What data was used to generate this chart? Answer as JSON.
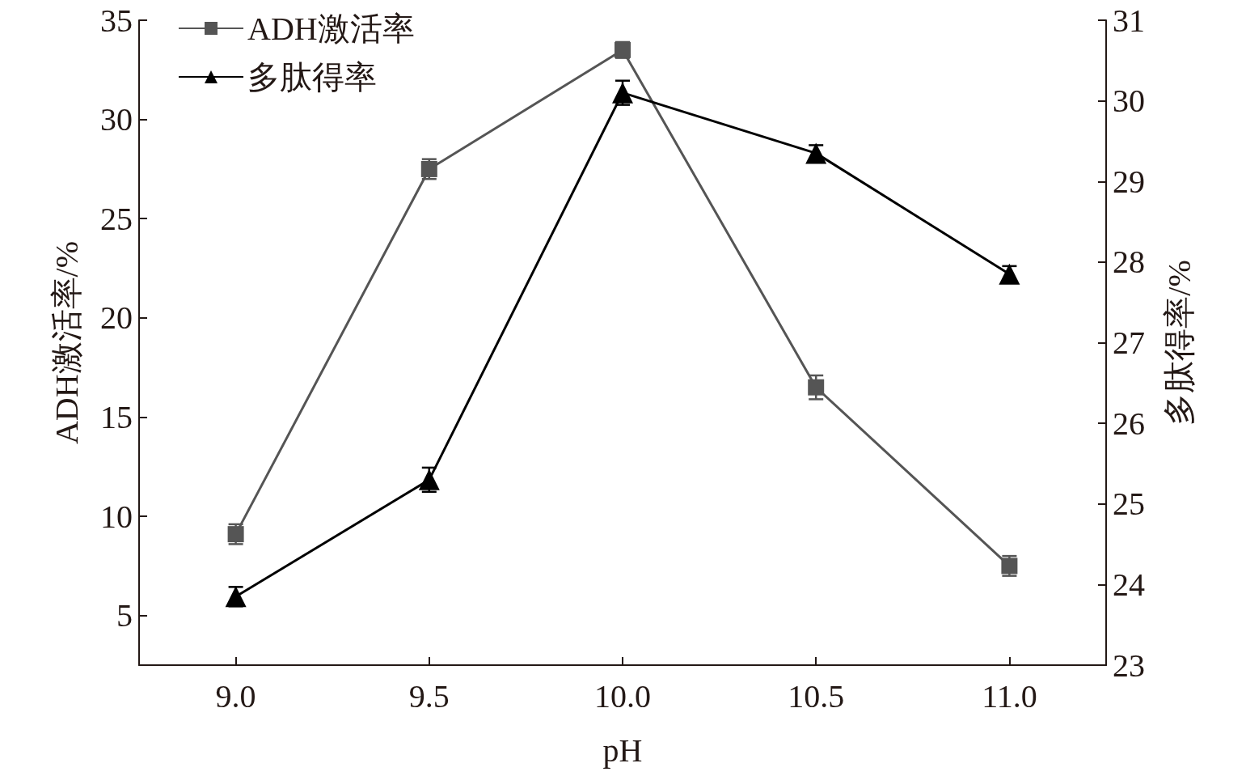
{
  "chart_data": {
    "type": "line",
    "xlabel": "pH",
    "ylabel": "ADH激活率/%",
    "y2label": "多肽得率/%",
    "x": [
      9.0,
      9.5,
      10.0,
      10.5,
      11.0
    ],
    "series": [
      {
        "name": "ADH激活率",
        "color": "#555555",
        "marker": "square",
        "values": [
          9.1,
          27.5,
          33.5,
          16.5,
          7.5
        ],
        "errors": [
          0.5,
          0.5,
          0.4,
          0.6,
          0.5
        ]
      },
      {
        "name": "多肽得率",
        "color": "#000000",
        "marker": "triangle",
        "axis": "y2",
        "values": [
          23.85,
          25.3,
          30.1,
          29.35,
          27.85
        ],
        "errors": [
          0.12,
          0.15,
          0.15,
          0.1,
          0.1
        ]
      }
    ],
    "xlim": [
      8.75,
      11.25
    ],
    "xticks": [
      {
        "value": 9.0,
        "label": "9.0"
      },
      {
        "value": 9.5,
        "label": "9.5"
      },
      {
        "value": 10.0,
        "label": "10.0"
      },
      {
        "value": 10.5,
        "label": "10.5"
      },
      {
        "value": 11.0,
        "label": "11.0"
      }
    ],
    "ylim": [
      2.5,
      35
    ],
    "yticks": [
      5,
      10,
      15,
      20,
      25,
      30,
      35
    ],
    "y2lim": [
      23,
      31
    ],
    "y2ticks": [
      23,
      24,
      25,
      26,
      27,
      28,
      29,
      30,
      31
    ],
    "legend": "top left",
    "grid": false,
    "line_style": "solid"
  }
}
